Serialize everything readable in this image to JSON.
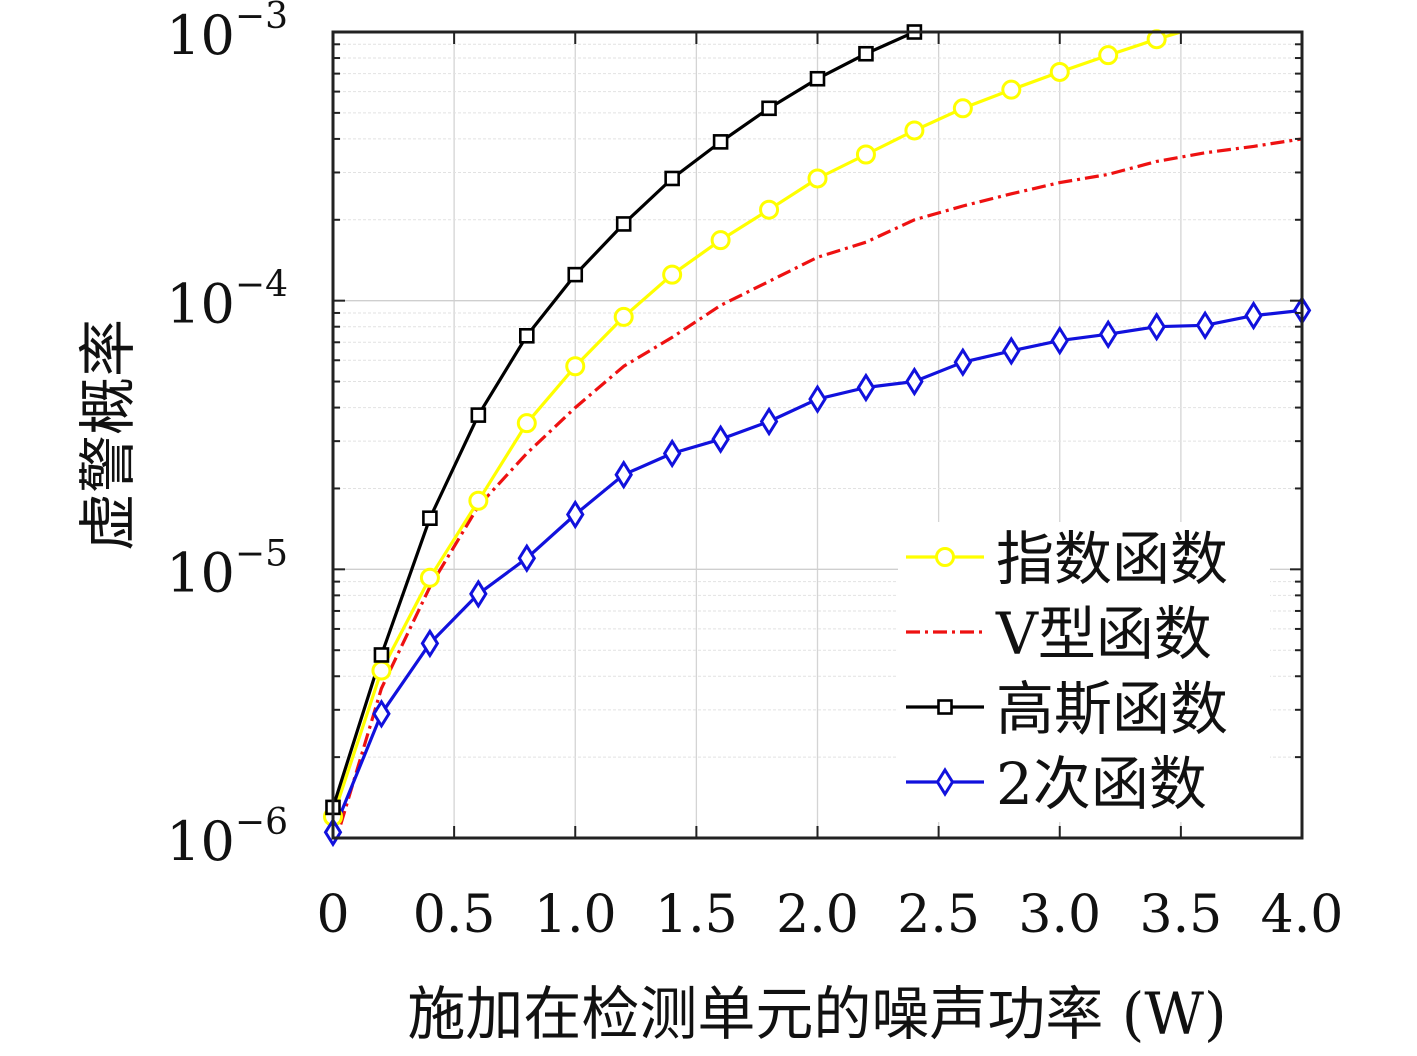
{
  "chart_data": {
    "type": "line",
    "xlabel": "施加在检测单元的噪声功率 (W)",
    "ylabel": "虚警概率",
    "x_ticks": [
      "0",
      "0.5",
      "1.0",
      "1.5",
      "2.0",
      "2.5",
      "3.0",
      "3.5",
      "4.0"
    ],
    "y_ticks": [
      {
        "base": "10",
        "exp": "−6",
        "value": 1e-06
      },
      {
        "base": "10",
        "exp": "−5",
        "value": 1e-05
      },
      {
        "base": "10",
        "exp": "−4",
        "value": 0.0001
      },
      {
        "base": "10",
        "exp": "−3",
        "value": 0.001
      }
    ],
    "xlim": [
      0,
      4.0
    ],
    "ylim": [
      1e-06,
      0.001
    ],
    "yscale": "log",
    "grid": true,
    "legend_position": "lower-right",
    "series": [
      {
        "name": "指数函数",
        "color": "#ffff00",
        "marker": "circle",
        "dash": "solid",
        "x": [
          0,
          0.2,
          0.4,
          0.6,
          0.8,
          1.0,
          1.2,
          1.4,
          1.6,
          1.8,
          2.0,
          2.2,
          2.4,
          2.6,
          2.8,
          3.0,
          3.2,
          3.4,
          3.5
        ],
        "y": [
          1.2e-06,
          4.2e-06,
          9.3e-06,
          1.8e-05,
          3.5e-05,
          5.7e-05,
          8.7e-05,
          0.000125,
          0.000168,
          0.000218,
          0.000285,
          0.00035,
          0.00043,
          0.00052,
          0.00061,
          0.00071,
          0.00082,
          0.00094,
          0.001
        ],
        "marker_every": [
          0,
          1,
          2,
          3,
          4,
          5,
          6,
          7,
          8,
          9,
          10,
          11,
          12,
          13,
          14,
          15,
          16,
          17
        ]
      },
      {
        "name": "V型函数",
        "color": "#ee1111",
        "marker": "none",
        "dash": "dashdot",
        "x": [
          0,
          0.2,
          0.4,
          0.6,
          0.8,
          1.0,
          1.2,
          1.4,
          1.6,
          1.8,
          2.0,
          2.2,
          2.4,
          2.6,
          2.8,
          3.0,
          3.2,
          3.4,
          3.6,
          3.8,
          4.0
        ],
        "y": [
          9e-07,
          3.6e-06,
          8.6e-06,
          1.72e-05,
          2.7e-05,
          4e-05,
          5.7e-05,
          7.3e-05,
          9.6e-05,
          0.000118,
          0.000145,
          0.000165,
          0.0002,
          0.000225,
          0.00025,
          0.000275,
          0.000295,
          0.00033,
          0.000355,
          0.000375,
          0.0004
        ],
        "marker_every": []
      },
      {
        "name": "高斯函数",
        "color": "#000000",
        "marker": "square",
        "dash": "solid",
        "x": [
          0,
          0.2,
          0.4,
          0.6,
          0.8,
          1.0,
          1.2,
          1.4,
          1.6,
          1.8,
          2.0,
          2.2,
          2.4
        ],
        "y": [
          1.3e-06,
          4.8e-06,
          1.55e-05,
          3.75e-05,
          7.4e-05,
          0.000125,
          0.000193,
          0.000285,
          0.00039,
          0.00052,
          0.00067,
          0.00083,
          0.001
        ],
        "marker_every": [
          0,
          1,
          2,
          3,
          4,
          5,
          6,
          7,
          8,
          9,
          10,
          11,
          12
        ]
      },
      {
        "name": "2次函数",
        "color": "#1111dd",
        "marker": "diamond",
        "dash": "solid",
        "x": [
          0,
          0.2,
          0.4,
          0.6,
          0.8,
          1.0,
          1.2,
          1.4,
          1.6,
          1.8,
          2.0,
          2.2,
          2.4,
          2.6,
          2.8,
          3.0,
          3.2,
          3.4,
          3.6,
          3.8,
          4.0
        ],
        "y": [
          1.05e-06,
          2.9e-06,
          5.3e-06,
          8.1e-06,
          1.1e-05,
          1.6e-05,
          2.25e-05,
          2.7e-05,
          3.05e-05,
          3.55e-05,
          4.3e-05,
          4.75e-05,
          5e-05,
          5.9e-05,
          6.5e-05,
          7.1e-05,
          7.5e-05,
          8e-05,
          8.1e-05,
          8.8e-05,
          9.2e-05
        ],
        "marker_every": [
          0,
          1,
          2,
          3,
          4,
          5,
          6,
          7,
          8,
          9,
          10,
          11,
          12,
          13,
          14,
          15,
          16,
          17,
          18,
          19,
          20
        ]
      }
    ]
  }
}
